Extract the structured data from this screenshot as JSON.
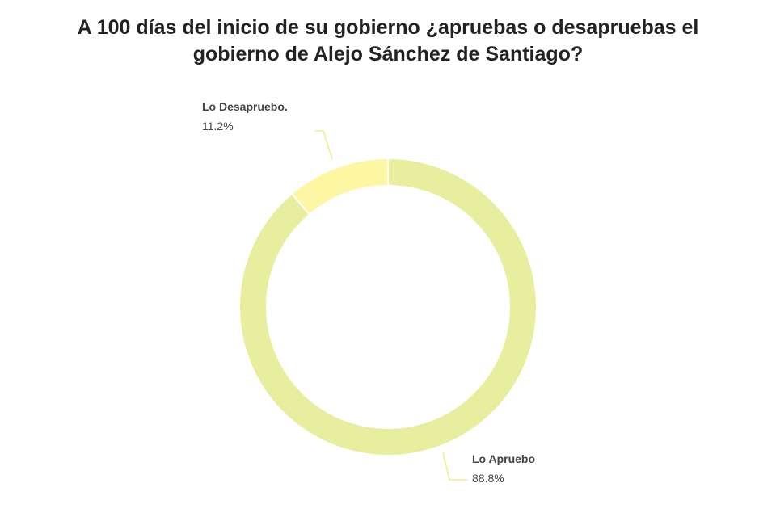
{
  "chart_data": {
    "type": "pie",
    "variant": "donut",
    "title": "A 100 días del inicio de su gobierno ¿apruebas o desapruebas el gobierno de Alejo Sánchez de Santiago?",
    "slices": [
      {
        "label": "Lo Apruebo",
        "value": 88.8,
        "value_label": "88.8%",
        "color": "#e7ef9f"
      },
      {
        "label": "Lo Desapruebo.",
        "value": 11.2,
        "value_label": "11.2%",
        "color": "#fdf6a3"
      }
    ],
    "leader_line_color": "#f0ec8a"
  }
}
